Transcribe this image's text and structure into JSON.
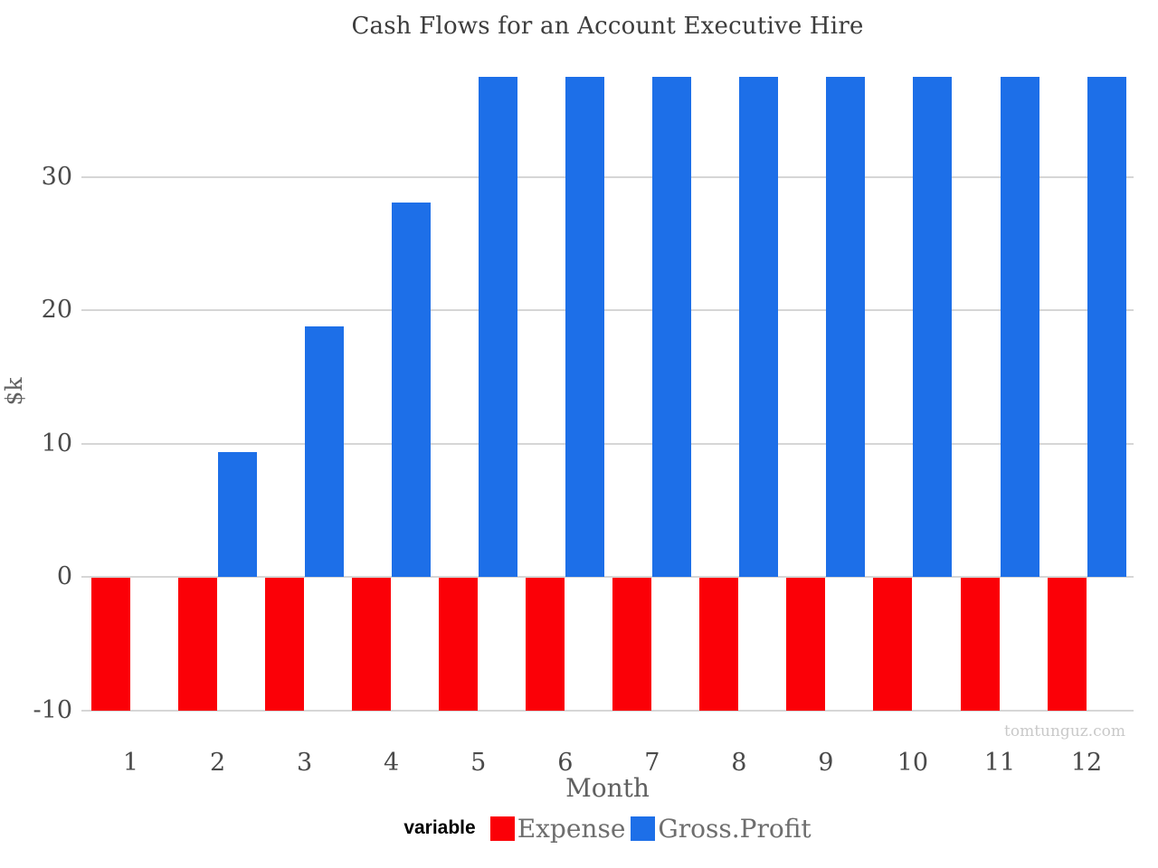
{
  "watermark": "tomtunguz.com",
  "colors": {
    "expense": "#fb0007",
    "gross_profit": "#1d6fe8",
    "gridline": "#d6d6d6",
    "axis_text": "#4a4a4a",
    "title_text": "#3d3d3d",
    "axis_label_text": "#606060",
    "legend_text": "#6e6e6e",
    "watermark_text": "#c9c9c9",
    "background": "#ffffff"
  },
  "chart_data": {
    "type": "bar",
    "bar_mode": "dodged",
    "title": "Cash Flows for an Account Executive Hire",
    "xlabel": "Month",
    "ylabel": "$k",
    "categories": [
      "1",
      "2",
      "3",
      "4",
      "5",
      "6",
      "7",
      "8",
      "9",
      "10",
      "11",
      "12"
    ],
    "series": [
      {
        "name": "Expense",
        "color": "#fb0007",
        "values": [
          -10,
          -10,
          -10,
          -10,
          -10,
          -10,
          -10,
          -10,
          -10,
          -10,
          -10,
          -10
        ]
      },
      {
        "name": "Gross.Profit",
        "color": "#1d6fe8",
        "values": [
          0,
          9.4,
          18.8,
          28.1,
          37.5,
          37.5,
          37.5,
          37.5,
          37.5,
          37.5,
          37.5,
          37.5
        ]
      }
    ],
    "yticks": [
      -10,
      0,
      10,
      20,
      30
    ],
    "ylim": [
      -10,
      37.5
    ],
    "grid": true,
    "legend_title": "variable",
    "legend_position": "bottom"
  }
}
